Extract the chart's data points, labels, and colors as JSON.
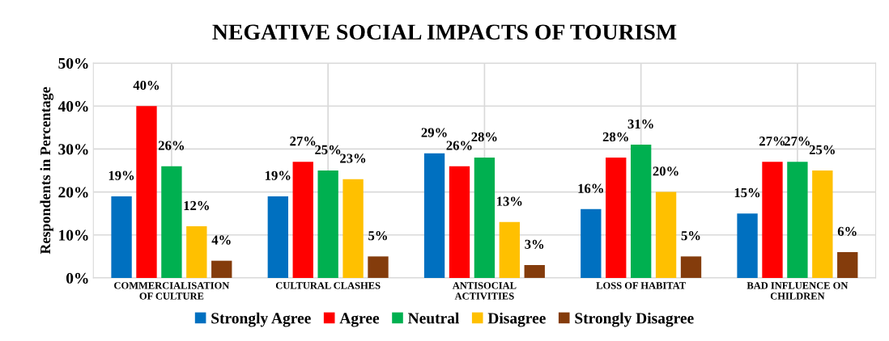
{
  "chart_data": {
    "type": "bar",
    "title": "NEGATIVE SOCIAL IMPACTS OF TOURISM",
    "ylabel": "Respondents in Percentage",
    "categories": [
      "COMMERCIALISATION\nOF CULTURE",
      "CULTURAL CLASHES",
      "ANTISOCIAL\nACTIVITIES",
      "LOSS OF HABITAT",
      "BAD INFLUENCE ON\nCHILDREN"
    ],
    "series": [
      {
        "name": "Strongly Agree",
        "color": "#0070c0",
        "values": [
          19,
          19,
          29,
          16,
          15
        ],
        "value_labels": [
          "19%",
          "19%",
          "29%",
          "16%",
          "15%"
        ]
      },
      {
        "name": "Agree",
        "color": "#ff0000",
        "values": [
          40,
          27,
          26,
          28,
          27
        ],
        "value_labels": [
          "40%",
          "27%",
          "26%",
          "28%",
          "27%"
        ]
      },
      {
        "name": "Neutral",
        "color": "#00b050",
        "values": [
          26,
          25,
          28,
          31,
          27
        ],
        "value_labels": [
          "26%",
          "25%",
          "28%",
          "31%",
          "27%"
        ]
      },
      {
        "name": "Disagree",
        "color": "#ffc000",
        "values": [
          12,
          23,
          13,
          20,
          25
        ],
        "value_labels": [
          "12%",
          "23%",
          "13%",
          "20%",
          "25%"
        ]
      },
      {
        "name": "Strongly Disagree",
        "color": "#843c0c",
        "values": [
          4,
          5,
          3,
          5,
          6
        ],
        "value_labels": [
          "4%",
          "5%",
          "3%",
          "5%",
          "6%"
        ]
      }
    ],
    "ylim": [
      0,
      50
    ],
    "yticks": [
      {
        "value": 0,
        "label": "0%"
      },
      {
        "value": 10,
        "label": "10%"
      },
      {
        "value": 20,
        "label": "20%"
      },
      {
        "value": 30,
        "label": "30%"
      },
      {
        "value": 40,
        "label": "40%"
      },
      {
        "value": 50,
        "label": "50%"
      }
    ],
    "grid": true,
    "legend": "bottom"
  }
}
